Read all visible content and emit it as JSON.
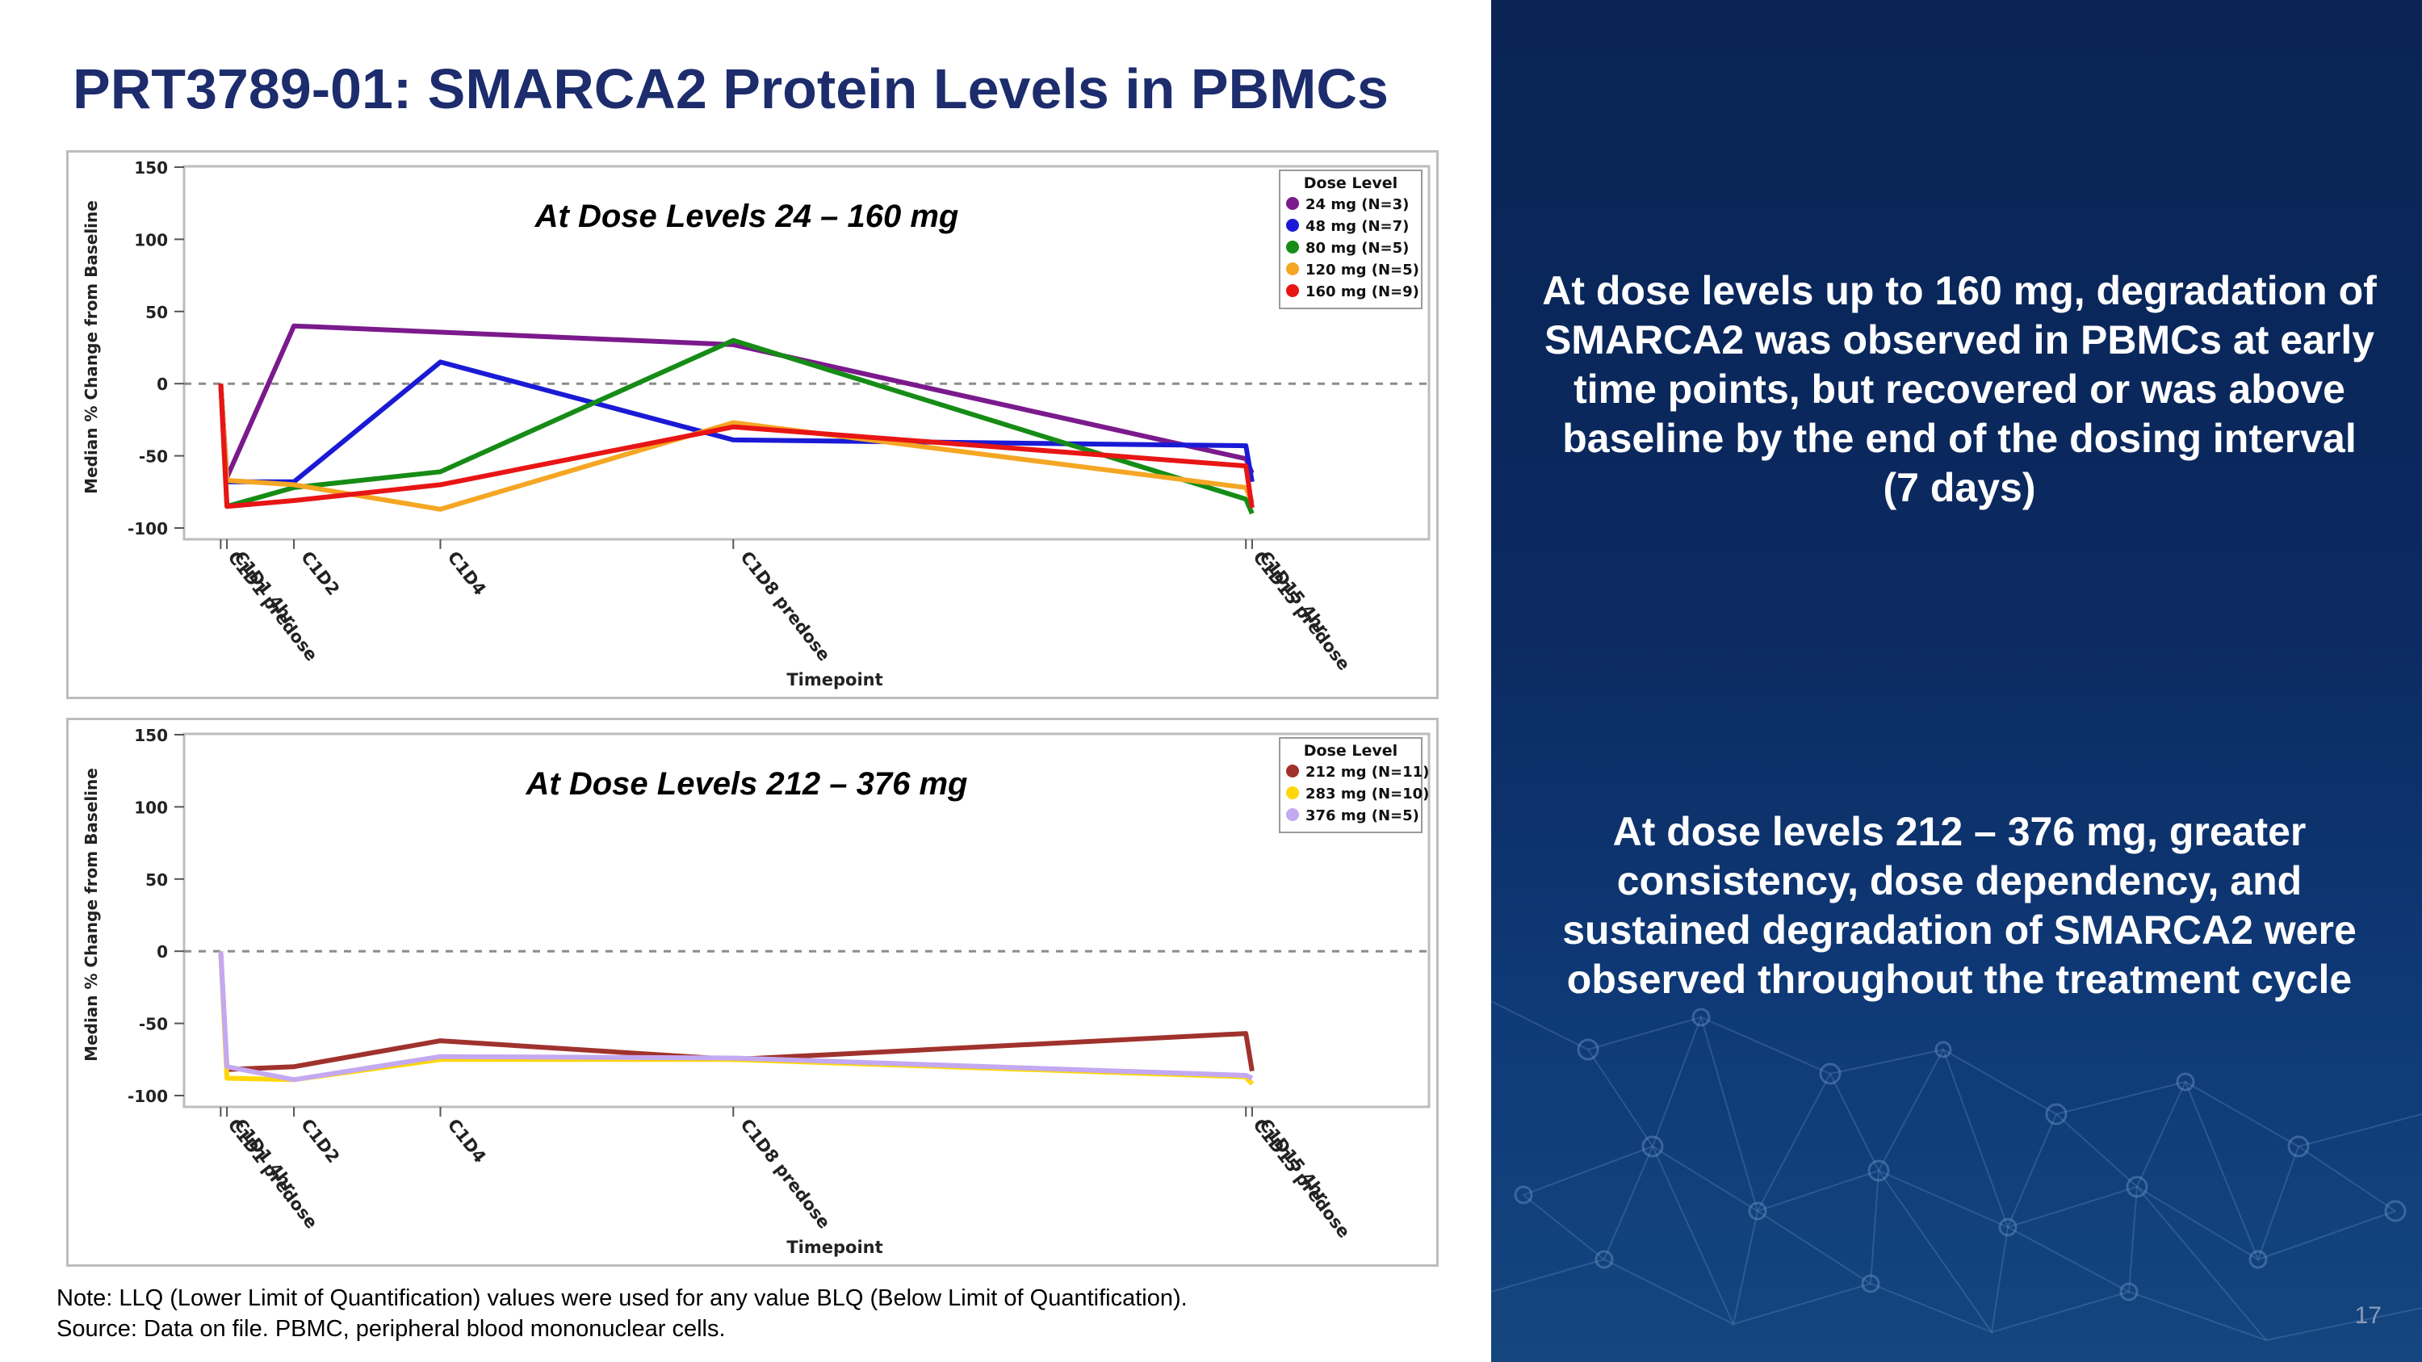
{
  "slide": {
    "title": "PRT3789-01: SMARCA2 Protein Levels in PBMCs",
    "note_line1": "Note: LLQ (Lower Limit of Quantification) values were used for any value BLQ (Below Limit of Quantification).",
    "note_line2": "Source: Data on file. PBMC, peripheral blood mononuclear cells.",
    "message1": "At dose levels up to 160 mg, degradation of SMARCA2 was observed in PBMCs at early time points, but recovered or was above baseline by the end of the dosing interval (7 days)",
    "message2": "At dose levels 212 – 376 mg, greater consistency, dose dependency, and sustained degradation of SMARCA2 were observed throughout the treatment cycle",
    "page_number": "17"
  },
  "chart_data": [
    {
      "type": "line",
      "title": "At Dose Levels 24 – 160 mg",
      "xlabel": "Timepoint",
      "ylabel": "Median % Change from Baseline",
      "ylim": [
        -100,
        150
      ],
      "yticks": [
        150,
        100,
        50,
        0,
        -50,
        -100
      ],
      "x": [
        0,
        0.17,
        2,
        6,
        14,
        28,
        28.17
      ],
      "xticks": [
        {
          "label": "C1D1 predose",
          "x": 0
        },
        {
          "label": "C1D1 4hr",
          "x": 0.17
        },
        {
          "label": "C1D2",
          "x": 2
        },
        {
          "label": "C1D4",
          "x": 6
        },
        {
          "label": "C1D8 predose",
          "x": 14
        },
        {
          "label": "C1D15 predose",
          "x": 28
        },
        {
          "label": "C1D15 4hr",
          "x": 28.17
        }
      ],
      "xlim": [
        -1,
        33
      ],
      "reference_line": 0,
      "legend_title": "Dose Level",
      "series": [
        {
          "name": "24 mg (N=3)",
          "color": "#7b1a8c",
          "values": [
            0,
            -65,
            40,
            null,
            27,
            -52,
            -62
          ]
        },
        {
          "name": "48 mg (N=7)",
          "color": "#1a1ad6",
          "values": [
            0,
            -68,
            -68,
            15,
            -39,
            -43,
            -68
          ]
        },
        {
          "name": "80 mg (N=5)",
          "color": "#168c16",
          "values": [
            0,
            -85,
            -72,
            -61,
            30,
            -80,
            -90
          ]
        },
        {
          "name": "120 mg (N=5)",
          "color": "#f5a623",
          "values": [
            0,
            -67,
            -70,
            -87,
            -27,
            -72,
            -82
          ]
        },
        {
          "name": "160 mg (N=9)",
          "color": "#e81515",
          "values": [
            0,
            -85,
            -81,
            -70,
            -30,
            -57,
            -86
          ]
        }
      ]
    },
    {
      "type": "line",
      "title": "At Dose Levels 212 – 376 mg",
      "xlabel": "Timepoint",
      "ylabel": "Median % Change from Baseline",
      "ylim": [
        -100,
        150
      ],
      "yticks": [
        150,
        100,
        50,
        0,
        -50,
        -100
      ],
      "x": [
        0,
        0.17,
        2,
        6,
        14,
        28,
        28.17
      ],
      "xticks": [
        {
          "label": "C1D1 predose",
          "x": 0
        },
        {
          "label": "C1D1 4hr",
          "x": 0.17
        },
        {
          "label": "C1D2",
          "x": 2
        },
        {
          "label": "C1D4",
          "x": 6
        },
        {
          "label": "C1D8 predose",
          "x": 14
        },
        {
          "label": "C1D15 predose",
          "x": 28
        },
        {
          "label": "C1D15 4hr",
          "x": 28.17
        }
      ],
      "xlim": [
        -1,
        33
      ],
      "reference_line": 0,
      "legend_title": "Dose Level",
      "series": [
        {
          "name": "212 mg (N=11)",
          "color": "#a0322d",
          "values": [
            0,
            -82,
            -80,
            -62,
            -75,
            -57,
            -83
          ]
        },
        {
          "name": "283 mg (N=10)",
          "color": "#ffd60a",
          "values": [
            0,
            -88,
            -89,
            -75,
            -75,
            -87,
            -92
          ]
        },
        {
          "name": "376 mg (N=5)",
          "color": "#c3a8f2",
          "values": [
            0,
            -80,
            -89,
            -73,
            -74,
            -86,
            -88
          ]
        }
      ]
    }
  ]
}
